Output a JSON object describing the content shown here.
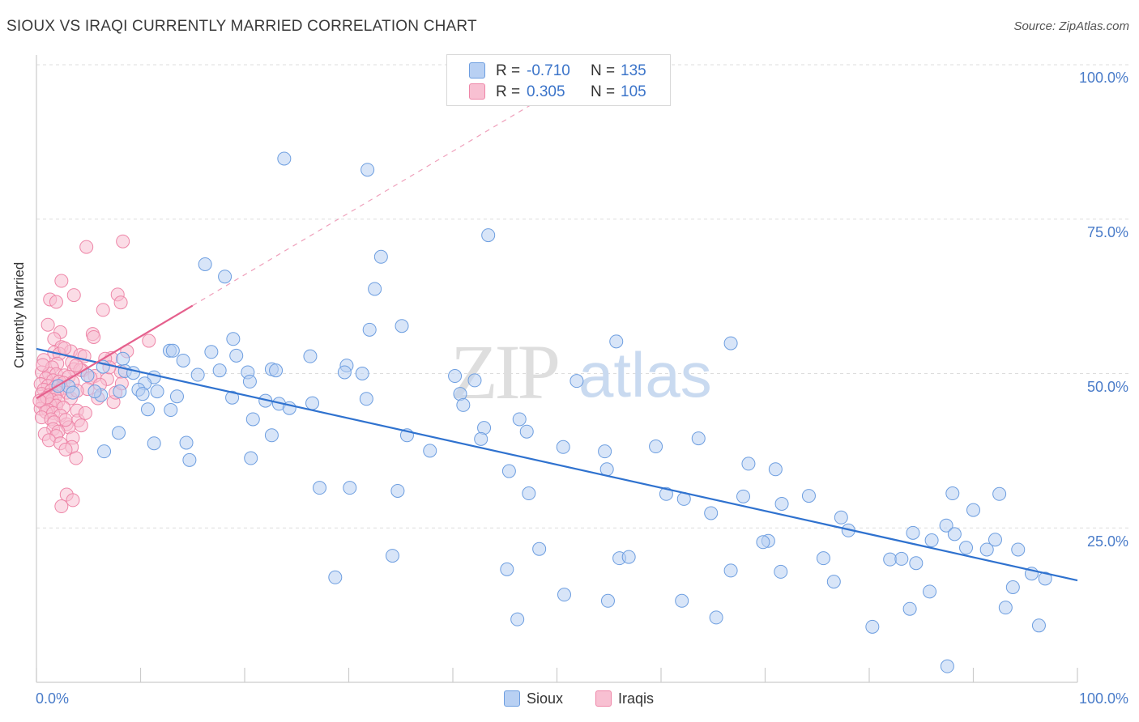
{
  "title": "SIOUX VS IRAQI CURRENTLY MARRIED CORRELATION CHART",
  "source": "Source: ZipAtlas.com",
  "watermark": {
    "zip": "ZIP",
    "atlas": "atlas"
  },
  "legend": {
    "rows": [
      {
        "r_label": "R =",
        "r_value": "-0.710",
        "n_label": "N =",
        "n_value": "135"
      },
      {
        "r_label": "R =",
        "r_value": "0.305",
        "n_label": "N =",
        "n_value": "105"
      }
    ]
  },
  "colors": {
    "sioux_fill": "#b8d0f3",
    "sioux_stroke": "#6d9ee0",
    "sioux_line": "#2f72cf",
    "iraqi_fill": "#f8c0d2",
    "iraqi_stroke": "#ee86a8",
    "iraqi_line": "#e5608d",
    "tick_text": "#4a7cc9",
    "grid": "#dddddd"
  },
  "chart_data": {
    "type": "scatter",
    "title": "SIOUX VS IRAQI CURRENTLY MARRIED CORRELATION CHART",
    "xlabel": "",
    "ylabel": "Currently Married",
    "xlim": [
      0,
      100
    ],
    "ylim": [
      0,
      100
    ],
    "x_tick_labels": [
      "0.0%",
      "100.0%"
    ],
    "y_ticks": [
      25,
      50,
      75,
      100
    ],
    "y_tick_labels": [
      "25.0%",
      "50.0%",
      "75.0%",
      "100.0%"
    ],
    "series": [
      {
        "name": "Sioux",
        "r": -0.71,
        "n": 135,
        "trend": {
          "x": [
            0,
            100
          ],
          "y": [
            54.0,
            16.5
          ],
          "style": "solid"
        },
        "points": [
          [
            23.8,
            84.8
          ],
          [
            31.8,
            83.0
          ],
          [
            43.4,
            72.4
          ],
          [
            33.1,
            68.9
          ],
          [
            16.2,
            67.7
          ],
          [
            18.1,
            65.7
          ],
          [
            32.5,
            63.7
          ],
          [
            32.0,
            57.1
          ],
          [
            35.1,
            57.7
          ],
          [
            18.9,
            55.6
          ],
          [
            55.7,
            55.2
          ],
          [
            66.7,
            54.9
          ],
          [
            12.8,
            53.7
          ],
          [
            13.1,
            53.7
          ],
          [
            16.8,
            53.5
          ],
          [
            8.3,
            52.4
          ],
          [
            14.1,
            52.1
          ],
          [
            19.2,
            52.9
          ],
          [
            26.3,
            52.8
          ],
          [
            29.8,
            51.3
          ],
          [
            29.6,
            50.2
          ],
          [
            6.4,
            51.1
          ],
          [
            22.6,
            50.7
          ],
          [
            17.6,
            50.5
          ],
          [
            20.3,
            50.2
          ],
          [
            8.5,
            50.4
          ],
          [
            4.9,
            49.7
          ],
          [
            9.3,
            50.1
          ],
          [
            11.3,
            49.4
          ],
          [
            15.5,
            49.8
          ],
          [
            23.0,
            50.5
          ],
          [
            20.5,
            48.7
          ],
          [
            40.2,
            49.6
          ],
          [
            42.1,
            48.9
          ],
          [
            51.9,
            48.8
          ],
          [
            10.4,
            48.4
          ],
          [
            3.1,
            47.9
          ],
          [
            2.1,
            48.0
          ],
          [
            9.8,
            47.4
          ],
          [
            6.2,
            46.5
          ],
          [
            5.6,
            47.1
          ],
          [
            3.5,
            46.9
          ],
          [
            11.6,
            47.1
          ],
          [
            13.5,
            46.3
          ],
          [
            8.0,
            47.1
          ],
          [
            10.2,
            46.7
          ],
          [
            40.7,
            46.7
          ],
          [
            31.7,
            45.9
          ],
          [
            41.0,
            44.9
          ],
          [
            18.8,
            46.1
          ],
          [
            22.0,
            45.6
          ],
          [
            23.3,
            45.1
          ],
          [
            24.3,
            44.4
          ],
          [
            26.5,
            45.2
          ],
          [
            10.7,
            44.2
          ],
          [
            12.9,
            44.1
          ],
          [
            22.6,
            40.0
          ],
          [
            20.8,
            42.6
          ],
          [
            31.3,
            50.0
          ],
          [
            35.6,
            40.0
          ],
          [
            46.4,
            42.6
          ],
          [
            47.1,
            40.6
          ],
          [
            43.0,
            41.2
          ],
          [
            42.7,
            39.4
          ],
          [
            37.8,
            37.5
          ],
          [
            50.6,
            38.1
          ],
          [
            54.6,
            37.4
          ],
          [
            59.5,
            38.2
          ],
          [
            63.6,
            39.5
          ],
          [
            7.9,
            40.4
          ],
          [
            6.5,
            37.4
          ],
          [
            11.3,
            38.7
          ],
          [
            14.4,
            38.8
          ],
          [
            14.7,
            36.0
          ],
          [
            20.6,
            36.3
          ],
          [
            27.2,
            31.5
          ],
          [
            30.1,
            31.5
          ],
          [
            34.7,
            31.0
          ],
          [
            45.4,
            34.2
          ],
          [
            54.8,
            34.5
          ],
          [
            68.4,
            35.4
          ],
          [
            71.0,
            34.5
          ],
          [
            47.3,
            30.6
          ],
          [
            60.5,
            30.5
          ],
          [
            62.2,
            29.7
          ],
          [
            67.9,
            30.1
          ],
          [
            71.6,
            28.9
          ],
          [
            74.2,
            30.2
          ],
          [
            88.0,
            30.6
          ],
          [
            92.5,
            30.5
          ],
          [
            64.8,
            27.4
          ],
          [
            77.3,
            26.7
          ],
          [
            90.0,
            27.9
          ],
          [
            78.0,
            24.6
          ],
          [
            84.2,
            24.2
          ],
          [
            87.4,
            25.4
          ],
          [
            88.2,
            24.0
          ],
          [
            70.3,
            22.9
          ],
          [
            69.8,
            22.7
          ],
          [
            86.0,
            23.0
          ],
          [
            92.1,
            23.1
          ],
          [
            94.3,
            21.5
          ],
          [
            89.3,
            21.8
          ],
          [
            91.3,
            21.5
          ],
          [
            48.3,
            21.6
          ],
          [
            34.2,
            20.5
          ],
          [
            56.0,
            20.1
          ],
          [
            56.9,
            20.3
          ],
          [
            75.6,
            20.1
          ],
          [
            82.0,
            19.9
          ],
          [
            83.1,
            20.0
          ],
          [
            84.5,
            19.3
          ],
          [
            45.2,
            18.3
          ],
          [
            66.7,
            18.1
          ],
          [
            71.5,
            17.9
          ],
          [
            28.7,
            17.0
          ],
          [
            76.6,
            16.3
          ],
          [
            95.6,
            17.6
          ],
          [
            93.8,
            15.4
          ],
          [
            96.9,
            16.8
          ],
          [
            50.7,
            14.2
          ],
          [
            54.9,
            13.2
          ],
          [
            62.0,
            13.2
          ],
          [
            85.8,
            14.7
          ],
          [
            83.9,
            11.9
          ],
          [
            93.1,
            12.1
          ],
          [
            46.2,
            10.2
          ],
          [
            65.3,
            10.5
          ],
          [
            80.3,
            9.0
          ],
          [
            96.3,
            9.2
          ],
          [
            87.5,
            2.6
          ]
        ]
      },
      {
        "name": "Iraqis",
        "r": 0.305,
        "n": 105,
        "trend": {
          "x": [
            0,
            15.0
          ],
          "y": [
            46.0,
            61.0
          ],
          "style": "solid",
          "extension": {
            "x": [
              15.0,
              50.0
            ],
            "y": [
              61.0,
              96.0
            ],
            "style": "dashed"
          }
        },
        "points": [
          [
            4.8,
            70.5
          ],
          [
            8.3,
            71.4
          ],
          [
            2.4,
            65.0
          ],
          [
            7.8,
            62.8
          ],
          [
            3.6,
            62.7
          ],
          [
            1.3,
            62.0
          ],
          [
            1.9,
            61.6
          ],
          [
            6.4,
            60.3
          ],
          [
            8.1,
            61.5
          ],
          [
            1.1,
            57.9
          ],
          [
            2.3,
            56.7
          ],
          [
            5.4,
            56.4
          ],
          [
            5.5,
            55.9
          ],
          [
            1.7,
            55.6
          ],
          [
            2.4,
            54.3
          ],
          [
            8.7,
            53.6
          ],
          [
            10.8,
            55.3
          ],
          [
            3.3,
            53.6
          ],
          [
            1.7,
            53.4
          ],
          [
            2.2,
            53.2
          ],
          [
            4.2,
            53.0
          ],
          [
            4.6,
            52.8
          ],
          [
            7.2,
            52.5
          ],
          [
            6.6,
            52.4
          ],
          [
            0.7,
            52.2
          ],
          [
            3.4,
            51.8
          ],
          [
            2.0,
            51.6
          ],
          [
            1.5,
            51.0
          ],
          [
            3.6,
            50.7
          ],
          [
            4.4,
            50.5
          ],
          [
            8.1,
            50.3
          ],
          [
            0.5,
            50.2
          ],
          [
            1.2,
            50.0
          ],
          [
            1.9,
            49.9
          ],
          [
            2.7,
            49.7
          ],
          [
            3.1,
            49.5
          ],
          [
            5.6,
            49.6
          ],
          [
            0.9,
            49.2
          ],
          [
            1.6,
            48.9
          ],
          [
            2.2,
            48.7
          ],
          [
            2.6,
            48.5
          ],
          [
            3.5,
            48.6
          ],
          [
            0.4,
            48.3
          ],
          [
            1.1,
            48.0
          ],
          [
            1.8,
            47.8
          ],
          [
            2.4,
            47.6
          ],
          [
            0.7,
            47.4
          ],
          [
            1.4,
            47.2
          ],
          [
            2.0,
            47.0
          ],
          [
            2.9,
            46.9
          ],
          [
            0.5,
            46.7
          ],
          [
            1.2,
            46.5
          ],
          [
            1.8,
            46.3
          ],
          [
            3.3,
            46.0
          ],
          [
            0.8,
            45.9
          ],
          [
            1.5,
            45.7
          ],
          [
            2.1,
            45.5
          ],
          [
            7.4,
            45.4
          ],
          [
            0.6,
            45.2
          ],
          [
            1.3,
            45.0
          ],
          [
            1.9,
            44.8
          ],
          [
            2.6,
            44.5
          ],
          [
            0.4,
            44.3
          ],
          [
            1.1,
            44.1
          ],
          [
            3.9,
            44.0
          ],
          [
            0.9,
            43.8
          ],
          [
            1.6,
            43.6
          ],
          [
            2.3,
            43.2
          ],
          [
            0.5,
            42.9
          ],
          [
            1.4,
            42.6
          ],
          [
            4.0,
            42.4
          ],
          [
            1.7,
            42.1
          ],
          [
            2.9,
            41.8
          ],
          [
            4.3,
            41.6
          ],
          [
            3.1,
            41.3
          ],
          [
            1.6,
            41.0
          ],
          [
            2.1,
            40.6
          ],
          [
            0.8,
            40.2
          ],
          [
            1.9,
            39.9
          ],
          [
            3.5,
            39.6
          ],
          [
            1.2,
            39.2
          ],
          [
            2.3,
            38.7
          ],
          [
            3.4,
            38.1
          ],
          [
            2.8,
            37.7
          ],
          [
            3.8,
            36.3
          ],
          [
            2.9,
            30.4
          ],
          [
            3.5,
            29.5
          ],
          [
            2.4,
            28.5
          ],
          [
            2.8,
            42.5
          ],
          [
            4.7,
            43.6
          ],
          [
            5.9,
            46.0
          ],
          [
            7.6,
            46.9
          ],
          [
            8.2,
            48.4
          ],
          [
            5.2,
            49.3
          ],
          [
            6.8,
            49.1
          ],
          [
            4.2,
            50.6
          ],
          [
            3.8,
            51.3
          ],
          [
            4.9,
            47.5
          ],
          [
            6.1,
            48.2
          ],
          [
            7.0,
            51.0
          ],
          [
            2.7,
            54.1
          ],
          [
            3.9,
            47.2
          ],
          [
            1.0,
            46.1
          ],
          [
            0.3,
            45.6
          ],
          [
            0.6,
            51.4
          ]
        ]
      }
    ]
  },
  "bottom_legend": [
    "Sioux",
    "Iraqis"
  ]
}
